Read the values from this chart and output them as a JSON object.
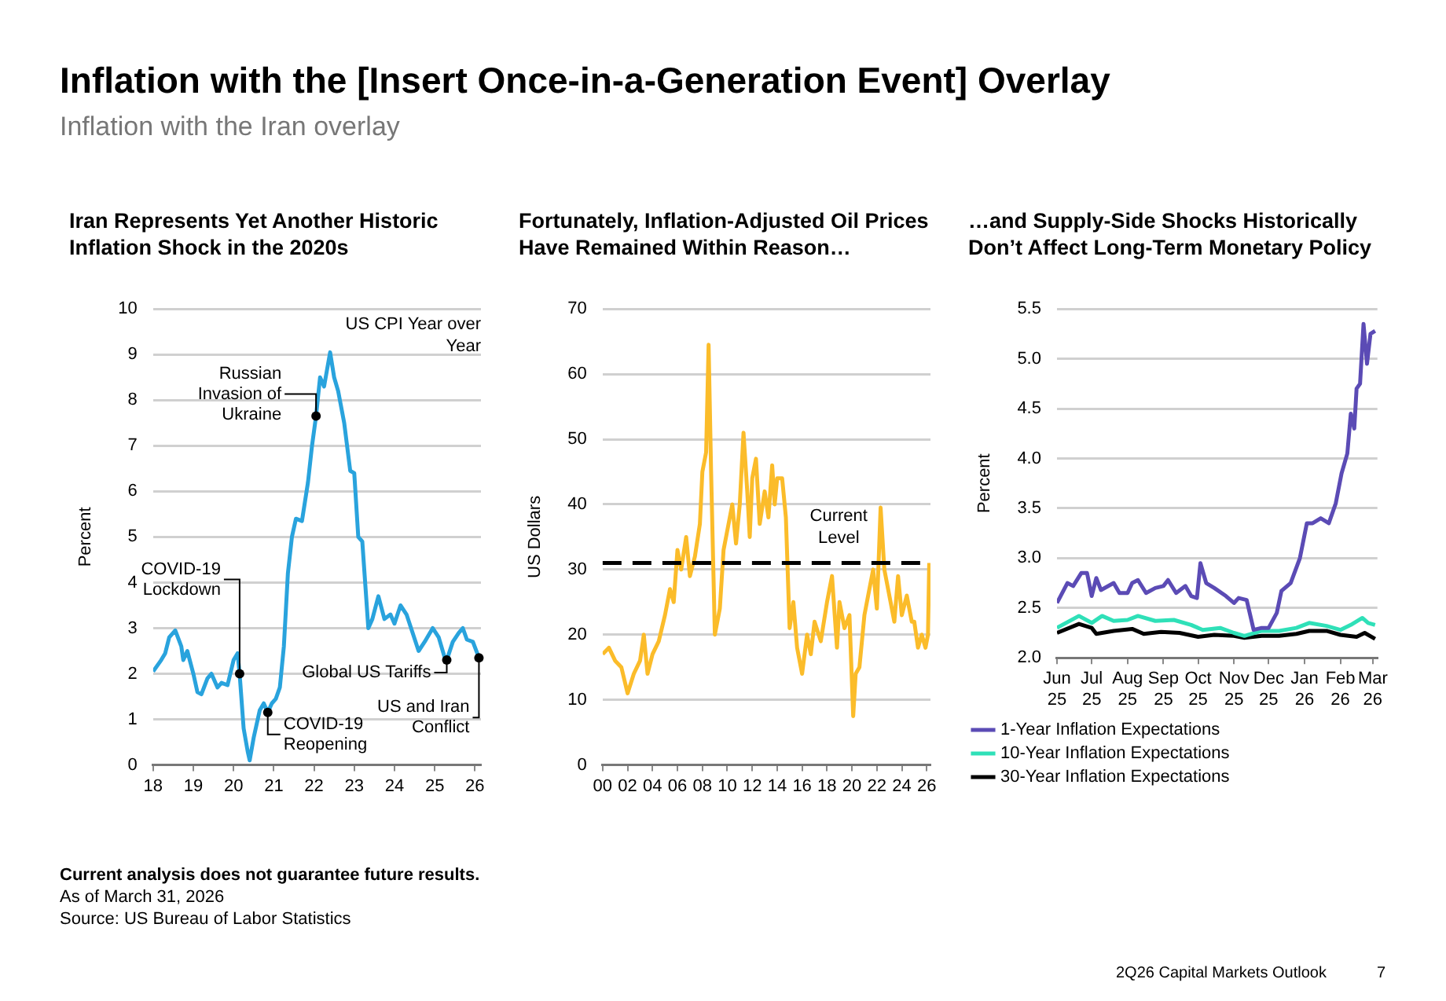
{
  "chart_data": [
    {
      "type": "other",
      "title": "Inflation with the [Insert Once-in-a-Generation Event] Overlay",
      "subtitle": "Inflation with the Iran overlay",
      "annotations": [
        "Current analysis does not guarantee future results.",
        "As of March 31, 2026",
        "Source: US Bureau of Labor Statistics",
        "2Q26 Capital Markets Outlook",
        "7"
      ]
    },
    {
      "type": "line",
      "title": "Iran Represents Yet Another Historic Inflation Shock in the 2020s",
      "ylabel": "Percent",
      "xlim": [
        18,
        26.15
      ],
      "xticks": [
        18,
        19,
        20,
        21,
        22,
        23,
        24,
        25,
        26
      ],
      "ylim": [
        0,
        10
      ],
      "yticks": [
        0,
        1,
        2,
        3,
        4,
        5,
        6,
        7,
        8,
        9,
        10
      ],
      "grid": "y",
      "legend": false,
      "series": [
        {
          "name": "US CPI Year over Year",
          "color": "#29a3dd",
          "x": [
            18.0,
            18.2,
            18.3,
            18.4,
            18.55,
            18.7,
            18.75,
            18.85,
            19.0,
            19.1,
            19.2,
            19.35,
            19.45,
            19.6,
            19.7,
            19.85,
            20.0,
            20.1,
            20.15,
            20.25,
            20.35,
            20.4,
            20.5,
            20.65,
            20.75,
            20.85,
            20.95,
            21.05,
            21.15,
            21.25,
            21.35,
            21.45,
            21.55,
            21.7,
            21.85,
            21.95,
            22.05,
            22.15,
            22.25,
            22.4,
            22.5,
            22.6,
            22.75,
            22.9,
            23.0,
            23.1,
            23.2,
            23.35,
            23.45,
            23.6,
            23.75,
            23.9,
            24.0,
            24.15,
            24.3,
            24.45,
            24.6,
            24.75,
            24.95,
            25.1,
            25.25,
            25.3,
            25.45,
            25.6,
            25.7,
            25.8,
            25.95,
            26.1
          ],
          "values": [
            2.05,
            2.3,
            2.45,
            2.8,
            2.95,
            2.6,
            2.3,
            2.5,
            2.0,
            1.6,
            1.55,
            1.9,
            2.0,
            1.7,
            1.8,
            1.75,
            2.3,
            2.45,
            2.0,
            0.8,
            0.3,
            0.1,
            0.6,
            1.2,
            1.35,
            1.15,
            1.35,
            1.45,
            1.7,
            2.6,
            4.2,
            5.0,
            5.4,
            5.35,
            6.2,
            7.0,
            7.65,
            8.5,
            8.3,
            9.05,
            8.5,
            8.2,
            7.5,
            6.45,
            6.4,
            5.0,
            4.9,
            3.0,
            3.2,
            3.7,
            3.2,
            3.3,
            3.1,
            3.5,
            3.3,
            2.9,
            2.5,
            2.7,
            3.0,
            2.8,
            2.35,
            2.3,
            2.7,
            2.9,
            3.0,
            2.75,
            2.7,
            2.35
          ]
        }
      ],
      "annotations": [
        {
          "text": "COVID-19 Lockdown",
          "x": 20.15,
          "y": 2.0
        },
        {
          "text": "COVID-19 Reopening",
          "x": 20.85,
          "y": 1.15
        },
        {
          "text": "Russian Invasion of Ukraine",
          "x": 22.05,
          "y": 7.65
        },
        {
          "text": "Global US Tariffs",
          "x": 25.3,
          "y": 2.3
        },
        {
          "text": "US and Iran Conflict",
          "x": 26.1,
          "y": 2.35
        }
      ]
    },
    {
      "type": "line",
      "title": "Fortunately, Inflation-Adjusted Oil Prices Have Remained Within Reason…",
      "ylabel": "US Dollars",
      "xlim": [
        2000,
        2026.3
      ],
      "xticks": [
        {
          "value": 2000,
          "label": "00"
        },
        {
          "value": 2002,
          "label": "02"
        },
        {
          "value": 2004,
          "label": "04"
        },
        {
          "value": 2006,
          "label": "06"
        },
        {
          "value": 2008,
          "label": "08"
        },
        {
          "value": 2010,
          "label": "10"
        },
        {
          "value": 2012,
          "label": "12"
        },
        {
          "value": 2014,
          "label": "14"
        },
        {
          "value": 2016,
          "label": "16"
        },
        {
          "value": 2018,
          "label": "18"
        },
        {
          "value": 2020,
          "label": "20"
        },
        {
          "value": 2022,
          "label": "22"
        },
        {
          "value": 2024,
          "label": "24"
        },
        {
          "value": 2026,
          "label": "26"
        }
      ],
      "ylim": [
        0,
        70
      ],
      "yticks": [
        0,
        10,
        20,
        30,
        40,
        50,
        60,
        70
      ],
      "grid": "y",
      "legend": false,
      "ref_lines": [
        {
          "axis": "y",
          "value": 31,
          "label": "Current Level",
          "color": "#000000",
          "line_style": "dashed"
        }
      ],
      "series": [
        {
          "color": "#fbbc2a",
          "x": [
            2000,
            2000.5,
            2001,
            2001.5,
            2002,
            2002.5,
            2003,
            2003.3,
            2003.6,
            2004,
            2004.5,
            2005,
            2005.4,
            2005.7,
            2006,
            2006.3,
            2006.7,
            2007,
            2007.4,
            2007.8,
            2008,
            2008.3,
            2008.5,
            2008.7,
            2009,
            2009.4,
            2009.7,
            2010,
            2010.4,
            2010.7,
            2011,
            2011.3,
            2011.6,
            2011.8,
            2012,
            2012.3,
            2012.6,
            2013,
            2013.3,
            2013.6,
            2013.8,
            2014,
            2014.4,
            2014.7,
            2015,
            2015.3,
            2015.6,
            2016,
            2016.4,
            2016.7,
            2017,
            2017.5,
            2018,
            2018.4,
            2018.8,
            2019,
            2019.4,
            2019.8,
            2020.1,
            2020.3,
            2020.6,
            2021,
            2021.3,
            2021.7,
            2022,
            2022.3,
            2022.6,
            2023,
            2023.4,
            2023.7,
            2024,
            2024.4,
            2024.8,
            2025,
            2025.3,
            2025.6,
            2025.9,
            2026.1,
            2026.2
          ],
          "values": [
            17,
            18,
            16,
            15,
            11,
            14,
            16,
            20,
            14,
            17,
            19,
            23,
            27,
            25,
            33,
            30,
            35,
            29,
            32,
            37,
            45,
            48,
            64.5,
            45,
            20,
            24,
            33,
            36,
            40,
            34,
            40,
            51,
            42,
            35,
            44,
            47,
            37,
            42,
            38,
            46,
            40,
            44,
            44,
            38,
            21,
            25,
            18,
            14,
            20,
            17,
            22,
            19,
            25,
            29,
            18,
            25,
            21,
            23,
            7.5,
            14,
            15,
            23,
            26,
            30,
            24,
            39.5,
            30,
            26,
            22,
            29,
            23,
            26,
            22,
            22,
            18,
            20,
            18,
            20,
            31
          ]
        }
      ]
    },
    {
      "type": "line",
      "title": "…and Supply-Side Shocks Historically Don’t Affect Long-Term Monetary Policy",
      "ylabel": "Percent",
      "xlim": [
        "2025-06-01",
        "2026-03-05"
      ],
      "xticks": [
        {
          "value": "2025-06-01",
          "label": "Jun 25"
        },
        {
          "value": "2025-07-01",
          "label": "Jul 25"
        },
        {
          "value": "2025-08-01",
          "label": "Aug 25"
        },
        {
          "value": "2025-09-01",
          "label": "Sep 25"
        },
        {
          "value": "2025-10-01",
          "label": "Oct 25"
        },
        {
          "value": "2025-11-01",
          "label": "Nov 25"
        },
        {
          "value": "2025-12-01",
          "label": "Dec 25"
        },
        {
          "value": "2026-01-01",
          "label": "Jan 26"
        },
        {
          "value": "2026-02-01",
          "label": "Feb 26"
        },
        {
          "value": "2026-03-01",
          "label": "Mar 26"
        }
      ],
      "ylim": [
        2,
        5.5
      ],
      "yticks": [
        {
          "value": 2,
          "label": "2.0"
        },
        2.5,
        {
          "value": 3,
          "label": "3.0"
        },
        3.5,
        {
          "value": 4,
          "label": "4.0"
        },
        4.5,
        {
          "value": 5,
          "label": "5.0"
        },
        5.5
      ],
      "grid": "y",
      "legend": "bottom",
      "series": [
        {
          "name": "1-Year Inflation Expectations",
          "color": "#5b4bb5",
          "x": [
            "2025-06-01",
            "2025-06-10",
            "2025-06-15",
            "2025-06-22",
            "2025-06-27",
            "2025-07-01",
            "2025-07-05",
            "2025-07-09",
            "2025-07-20",
            "2025-07-25",
            "2025-08-01",
            "2025-08-05",
            "2025-08-10",
            "2025-08-17",
            "2025-08-25",
            "2025-09-01",
            "2025-09-05",
            "2025-09-12",
            "2025-09-20",
            "2025-09-25",
            "2025-09-30",
            "2025-10-03",
            "2025-10-08",
            "2025-10-15",
            "2025-10-25",
            "2025-11-01",
            "2025-11-05",
            "2025-11-12",
            "2025-11-18",
            "2025-11-25",
            "2025-12-01",
            "2025-12-08",
            "2025-12-12",
            "2025-12-20",
            "2025-12-28",
            "2026-01-03",
            "2026-01-08",
            "2026-01-15",
            "2026-01-22",
            "2026-01-28",
            "2026-02-02",
            "2026-02-07",
            "2026-02-10",
            "2026-02-13",
            "2026-02-15",
            "2026-02-18",
            "2026-02-21",
            "2026-02-24",
            "2026-02-27",
            "2026-03-03"
          ],
          "values": [
            2.55,
            2.75,
            2.72,
            2.85,
            2.85,
            2.62,
            2.8,
            2.68,
            2.75,
            2.65,
            2.65,
            2.75,
            2.78,
            2.65,
            2.7,
            2.72,
            2.78,
            2.65,
            2.72,
            2.62,
            2.6,
            2.95,
            2.75,
            2.7,
            2.62,
            2.55,
            2.6,
            2.58,
            2.28,
            2.3,
            2.3,
            2.45,
            2.67,
            2.75,
            3.0,
            3.35,
            3.35,
            3.4,
            3.35,
            3.55,
            3.85,
            4.05,
            4.45,
            4.3,
            4.7,
            4.75,
            5.35,
            4.95,
            5.25,
            5.28
          ]
        },
        {
          "name": "10-Year Inflation Expectations",
          "color": "#2fe0b8",
          "x": [
            "2025-06-01",
            "2025-06-20",
            "2025-07-01",
            "2025-07-10",
            "2025-07-20",
            "2025-08-01",
            "2025-08-10",
            "2025-08-25",
            "2025-09-10",
            "2025-09-25",
            "2025-10-05",
            "2025-10-20",
            "2025-11-01",
            "2025-11-10",
            "2025-11-25",
            "2025-12-10",
            "2025-12-25",
            "2026-01-05",
            "2026-01-20",
            "2026-02-01",
            "2026-02-10",
            "2026-02-20",
            "2026-02-25",
            "2026-03-03"
          ],
          "values": [
            2.3,
            2.42,
            2.35,
            2.42,
            2.37,
            2.38,
            2.42,
            2.37,
            2.38,
            2.33,
            2.28,
            2.3,
            2.25,
            2.22,
            2.27,
            2.27,
            2.3,
            2.35,
            2.32,
            2.28,
            2.33,
            2.4,
            2.35,
            2.33
          ]
        },
        {
          "name": "30-Year Inflation Expectations",
          "color": "#000000",
          "x": [
            "2025-06-01",
            "2025-06-20",
            "2025-07-01",
            "2025-07-05",
            "2025-07-20",
            "2025-08-05",
            "2025-08-15",
            "2025-08-30",
            "2025-09-15",
            "2025-10-01",
            "2025-10-15",
            "2025-11-01",
            "2025-11-10",
            "2025-11-25",
            "2025-12-10",
            "2025-12-25",
            "2026-01-05",
            "2026-01-20",
            "2026-02-01",
            "2026-02-15",
            "2026-02-22",
            "2026-03-03"
          ],
          "values": [
            2.25,
            2.34,
            2.3,
            2.24,
            2.27,
            2.29,
            2.24,
            2.26,
            2.25,
            2.21,
            2.23,
            2.22,
            2.2,
            2.22,
            2.22,
            2.24,
            2.27,
            2.27,
            2.23,
            2.21,
            2.25,
            2.19
          ]
        }
      ]
    }
  ]
}
